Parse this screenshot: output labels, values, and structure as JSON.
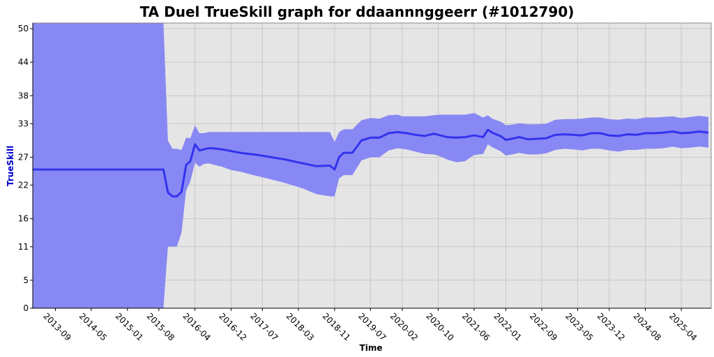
{
  "chart_data": {
    "type": "line",
    "title": "TA Duel TrueSkill graph for ddaannnggeerr (#1012790)",
    "xlabel": "Time",
    "ylabel": "TrueSkill",
    "x_ticks": [
      "2013-09",
      "2014-05",
      "2015-01",
      "2015-08",
      "2016-04",
      "2016-12",
      "2017-07",
      "2018-03",
      "2018-11",
      "2019-07",
      "2020-02",
      "2020-10",
      "2021-06",
      "2022-01",
      "2022-09",
      "2023-05",
      "2023-12",
      "2024-08",
      "2025-04"
    ],
    "y_ticks": [
      "0",
      "5",
      "11",
      "16",
      "22",
      "27",
      "33",
      "38",
      "44",
      "50"
    ],
    "ylim": [
      0,
      51
    ],
    "grid": true,
    "colors": {
      "mean_line": "#3333ee",
      "uncertainty_band": "#8888f4",
      "plot_background": "#e5e5e5",
      "grid": "#c8c8c8",
      "ylabel": "#0000cc"
    },
    "series": [
      {
        "role": "mean",
        "x": [
          "2013-04",
          "2015-09",
          "2015-10",
          "2015-11",
          "2015-12",
          "2016-01",
          "2016-02",
          "2016-03",
          "2016-04",
          "2016-05",
          "2016-06",
          "2016-07",
          "2016-08",
          "2016-10",
          "2016-12",
          "2017-02",
          "2017-04",
          "2017-06",
          "2017-09",
          "2017-12",
          "2018-04",
          "2018-07",
          "2018-10",
          "2018-11",
          "2018-12",
          "2019-01",
          "2019-03",
          "2019-05",
          "2019-07",
          "2019-09",
          "2019-11",
          "2020-01",
          "2020-02",
          "2020-03",
          "2020-05",
          "2020-07",
          "2020-09",
          "2020-10",
          "2020-12",
          "2021-02",
          "2021-04",
          "2021-06",
          "2021-08",
          "2021-09",
          "2021-10",
          "2021-12",
          "2022-01",
          "2022-03",
          "2022-04",
          "2022-06",
          "2022-08",
          "2022-10",
          "2022-12",
          "2023-02",
          "2023-04",
          "2023-06",
          "2023-08",
          "2023-10",
          "2023-12",
          "2024-02",
          "2024-04",
          "2024-06",
          "2024-08",
          "2024-10",
          "2024-12",
          "2025-02",
          "2025-04",
          "2025-06",
          "2025-08",
          "2025-10"
        ],
        "y": [
          24.8,
          24.8,
          20.7,
          20.0,
          20.0,
          20.8,
          25.6,
          26.3,
          29.3,
          28.2,
          28.4,
          28.6,
          28.6,
          28.4,
          28.1,
          27.8,
          27.6,
          27.4,
          27.0,
          26.6,
          25.9,
          25.4,
          25.5,
          24.8,
          27.0,
          27.8,
          27.8,
          30.0,
          30.5,
          30.5,
          31.3,
          31.5,
          31.4,
          31.3,
          31.0,
          30.8,
          31.2,
          31.0,
          30.6,
          30.5,
          30.6,
          30.9,
          30.6,
          31.9,
          31.4,
          30.7,
          30.1,
          30.4,
          30.6,
          30.2,
          30.3,
          30.4,
          31.0,
          31.1,
          31.0,
          30.9,
          31.3,
          31.3,
          30.9,
          30.8,
          31.1,
          31.0,
          31.3,
          31.3,
          31.4,
          31.6,
          31.3,
          31.4,
          31.6,
          31.4
        ],
        "lower": [
          0,
          0,
          11.0,
          11.0,
          11.0,
          13.5,
          21.0,
          22.7,
          26.0,
          25.3,
          25.8,
          25.9,
          25.7,
          25.3,
          24.7,
          24.4,
          24.0,
          23.6,
          23.0,
          22.4,
          21.4,
          20.4,
          20.0,
          20.0,
          23.2,
          23.8,
          23.8,
          26.4,
          27.0,
          27.0,
          28.2,
          28.6,
          28.5,
          28.4,
          28.0,
          27.6,
          27.5,
          27.3,
          26.6,
          26.1,
          26.3,
          27.4,
          27.6,
          29.3,
          28.8,
          28.0,
          27.3,
          27.6,
          27.8,
          27.5,
          27.5,
          27.7,
          28.3,
          28.5,
          28.4,
          28.2,
          28.5,
          28.5,
          28.2,
          28.0,
          28.3,
          28.3,
          28.5,
          28.5,
          28.6,
          28.9,
          28.6,
          28.7,
          28.9,
          28.7
        ],
        "upper": [
          51,
          51,
          30.0,
          28.5,
          28.5,
          28.3,
          30.5,
          30.4,
          32.7,
          31.3,
          31.3,
          31.5,
          31.5,
          31.5,
          31.5,
          31.5,
          31.5,
          31.5,
          31.5,
          31.5,
          31.5,
          31.5,
          31.5,
          29.7,
          31.5,
          32.0,
          32.0,
          33.6,
          34.0,
          33.9,
          34.5,
          34.6,
          34.3,
          34.3,
          34.3,
          34.3,
          34.5,
          34.6,
          34.6,
          34.6,
          34.6,
          34.9,
          34.1,
          34.5,
          33.9,
          33.3,
          32.7,
          32.9,
          33.1,
          32.9,
          32.9,
          33.0,
          33.7,
          33.8,
          33.8,
          33.9,
          34.1,
          34.1,
          33.8,
          33.7,
          33.9,
          33.8,
          34.1,
          34.1,
          34.2,
          34.3,
          34.0,
          34.2,
          34.4,
          34.2
        ]
      }
    ]
  }
}
